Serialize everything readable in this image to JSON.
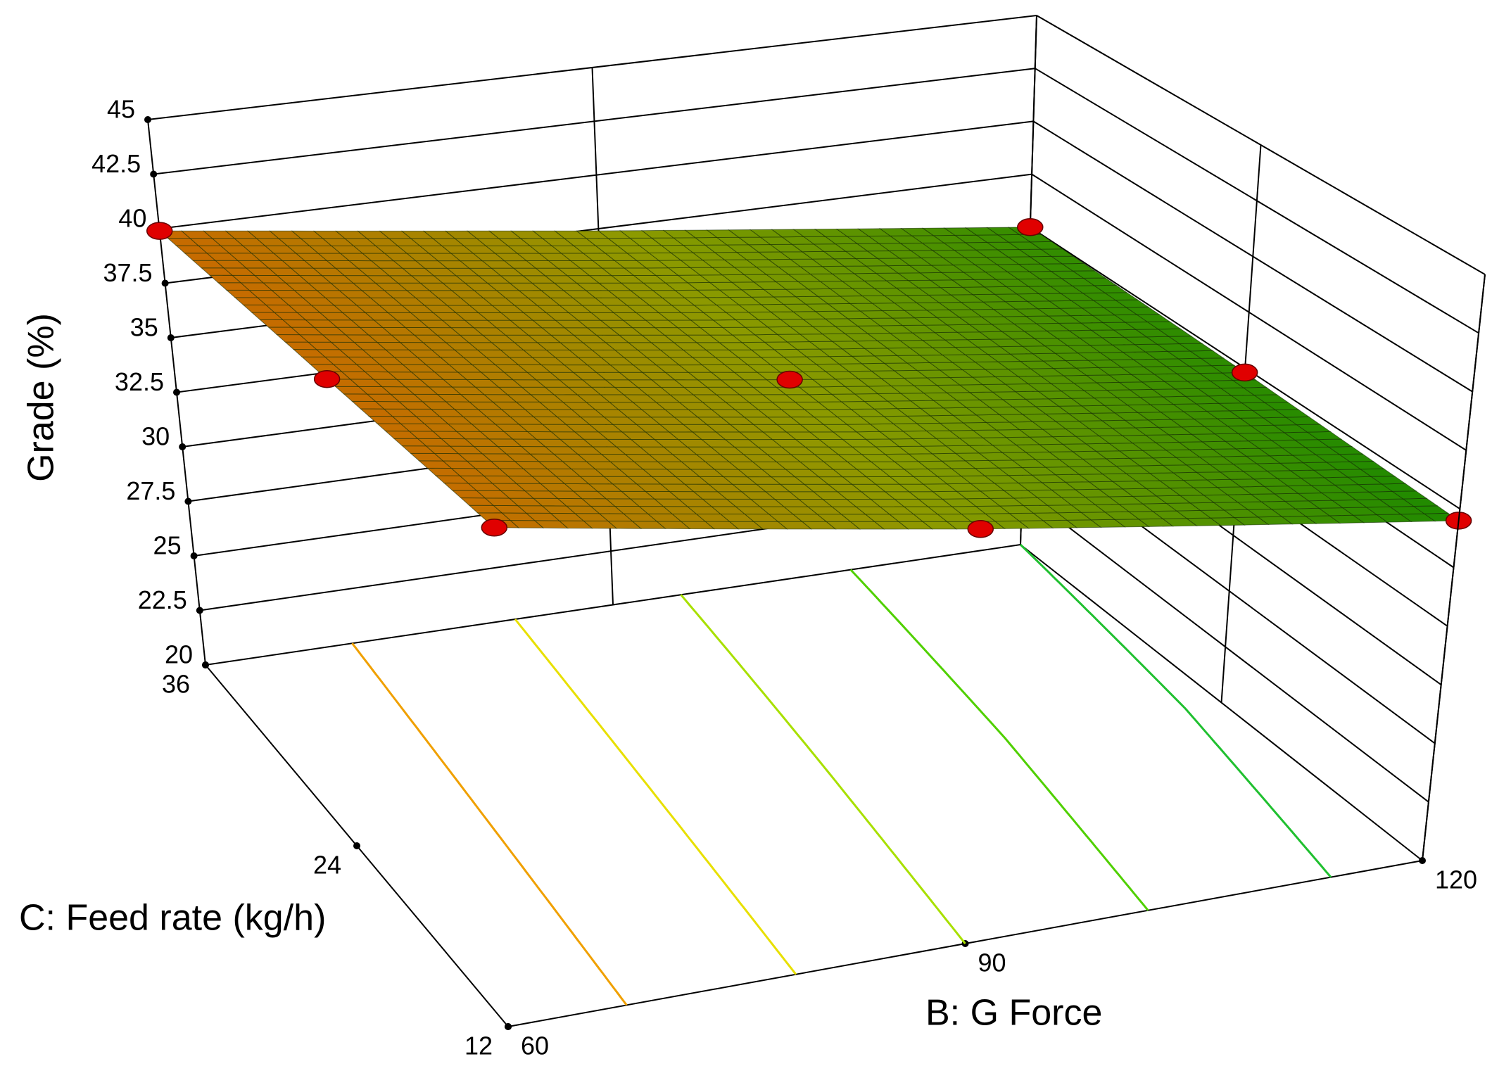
{
  "chart_data": {
    "type": "surface3d",
    "zlabel": "Grade (%)",
    "xlabel": "B: G Force",
    "ylabel": "C: Feed rate (kg/h)",
    "xlim": [
      60,
      120
    ],
    "xticks": [
      60,
      90,
      120
    ],
    "ylim": [
      12,
      36
    ],
    "yticks": [
      12,
      24,
      36
    ],
    "zlim": [
      20,
      45
    ],
    "zticks": [
      20,
      22.5,
      25,
      27.5,
      30,
      32.5,
      35,
      37.5,
      40,
      42.5,
      45
    ],
    "surface": {
      "B": [
        60,
        90,
        120
      ],
      "C": [
        12,
        24,
        36
      ],
      "grade": [
        [
          39.7,
          37.0,
          34.5
        ],
        [
          39.8,
          37.2,
          34.8
        ],
        [
          39.9,
          37.4,
          35.0
        ]
      ]
    },
    "surface_colors": [
      "#1e8a00",
      "#8c9a00",
      "#c86a00"
    ],
    "design_points": [
      {
        "B": 60,
        "C": 36,
        "grade": 39.9
      },
      {
        "B": 120,
        "C": 36,
        "grade": 35.0
      },
      {
        "B": 60,
        "C": 24,
        "grade": 39.8
      },
      {
        "B": 90,
        "C": 24,
        "grade": 37.2
      },
      {
        "B": 120,
        "C": 24,
        "grade": 34.8
      },
      {
        "B": 60,
        "C": 12,
        "grade": 39.7
      },
      {
        "B": 90,
        "C": 12,
        "grade": 37.0
      },
      {
        "B": 120,
        "C": 12,
        "grade": 34.5
      }
    ],
    "point_color": "#e00000",
    "contour_levels": [
      39,
      38,
      37,
      36,
      35
    ],
    "contour_colors": [
      "#f0a000",
      "#e8e000",
      "#a8e000",
      "#50d000",
      "#20c030"
    ]
  }
}
